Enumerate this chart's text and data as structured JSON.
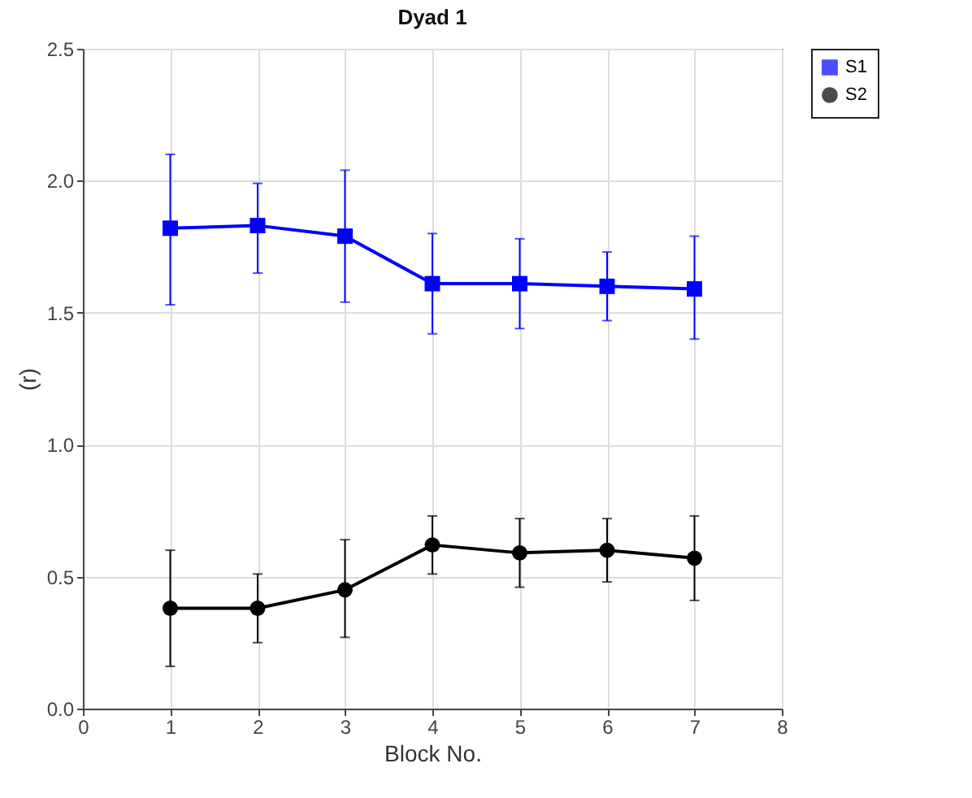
{
  "chart_data": {
    "type": "line",
    "title": "Dyad 1",
    "xlabel": "Block No.",
    "ylabel": "(r)",
    "x": [
      1,
      2,
      3,
      4,
      5,
      6,
      7
    ],
    "series": [
      {
        "name": "S1",
        "color": "#0000ff",
        "marker": "square",
        "values": [
          1.82,
          1.83,
          1.79,
          1.61,
          1.61,
          1.6,
          1.59
        ],
        "errors": [
          [
            1.53,
            2.1
          ],
          [
            1.65,
            1.99
          ],
          [
            1.54,
            2.04
          ],
          [
            1.42,
            1.8
          ],
          [
            1.44,
            1.78
          ],
          [
            1.47,
            1.73
          ],
          [
            1.4,
            1.79
          ]
        ]
      },
      {
        "name": "S2",
        "color": "#000000",
        "marker": "circle",
        "values": [
          0.38,
          0.38,
          0.45,
          0.62,
          0.59,
          0.6,
          0.57
        ],
        "errors": [
          [
            0.16,
            0.6
          ],
          [
            0.25,
            0.51
          ],
          [
            0.27,
            0.64
          ],
          [
            0.51,
            0.73
          ],
          [
            0.46,
            0.72
          ],
          [
            0.48,
            0.72
          ],
          [
            0.41,
            0.73
          ]
        ]
      }
    ],
    "xlim": [
      0,
      8
    ],
    "xticks": [
      0,
      1,
      2,
      3,
      4,
      5,
      6,
      7,
      8
    ],
    "ylim": [
      0,
      2.5
    ],
    "yticks": [
      {
        "value": 0,
        "label": "0.0"
      },
      0.5,
      {
        "value": 1,
        "label": "1.0"
      },
      1.5,
      {
        "value": 2,
        "label": "2.0"
      },
      2.5
    ],
    "grid": true,
    "legend": "top right",
    "line_style": "solid"
  }
}
